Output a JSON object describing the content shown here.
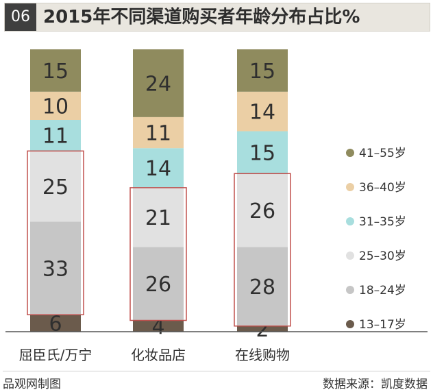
{
  "header": {
    "badge": "06",
    "title": "2015年不同渠道购买者年龄分布占比%"
  },
  "footer": {
    "credit": "品观网制图",
    "source": "数据来源：凯度数据"
  },
  "colors": {
    "13-17岁": "#6b5b4c",
    "18-24岁": "#c6c6c6",
    "25-30岁": "#e1e1e1",
    "31-35岁": "#a8dede",
    "36-40岁": "#ebcfa5",
    "41-55岁": "#8f8b5e",
    "highlight_border": "#c0504d",
    "label_text": "#2f2f2f"
  },
  "chart_data": {
    "type": "bar",
    "stacked": true,
    "categories": [
      "屈臣氏/万宁",
      "化妆品店",
      "在线购物"
    ],
    "series": [
      {
        "name": "13–17岁",
        "values": [
          6,
          4,
          2
        ]
      },
      {
        "name": "18–24岁",
        "values": [
          33,
          26,
          28
        ]
      },
      {
        "name": "25–30岁",
        "values": [
          25,
          21,
          26
        ]
      },
      {
        "name": "31–35岁",
        "values": [
          11,
          14,
          15
        ]
      },
      {
        "name": "36–40岁",
        "values": [
          10,
          11,
          14
        ]
      },
      {
        "name": "41–55岁",
        "values": [
          15,
          24,
          15
        ]
      }
    ],
    "legend_order": [
      "41–55岁",
      "36–40岁",
      "31–35岁",
      "25–30岁",
      "18–24岁",
      "13–17岁"
    ],
    "highlighted_series": [
      "18–24岁",
      "25–30岁"
    ],
    "legend_position": "right",
    "grid": false
  }
}
